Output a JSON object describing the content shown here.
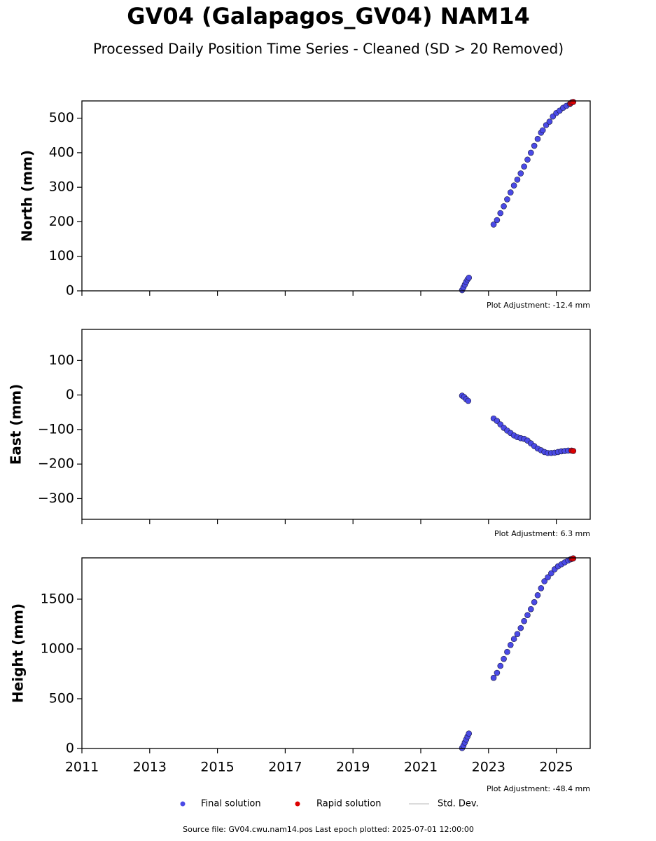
{
  "title": "GV04 (Galapagos_GV04) NAM14",
  "subtitle": "Processed Daily Position Time Series - Cleaned (SD > 20 Removed)",
  "std_dev_label": "Std. Dev.",
  "source": "Source file: GV04.cwu.nam14.pos  Last epoch plotted: 2025-07-01 12:00:00",
  "chart_data": [
    {
      "type": "scatter",
      "ylabel": "North (mm)",
      "annotation": "Plot Adjustment: -12.4 mm",
      "xlim": [
        2011,
        2026
      ],
      "xticks": [
        2011,
        2013,
        2015,
        2017,
        2019,
        2021,
        2023,
        2025
      ],
      "show_xtick_labels": false,
      "ylim": [
        0,
        550
      ],
      "yticks": [
        0,
        100,
        200,
        300,
        400,
        500
      ],
      "series": [
        {
          "name": "Final solution",
          "color": "#4a4ae6",
          "x": [
            2022.22,
            2022.26,
            2022.3,
            2022.34,
            2022.38,
            2022.42,
            2023.15,
            2023.25,
            2023.35,
            2023.45,
            2023.55,
            2023.65,
            2023.75,
            2023.85,
            2023.95,
            2024.05,
            2024.15,
            2024.25,
            2024.35,
            2024.45,
            2024.55,
            2024.6,
            2024.7,
            2024.8,
            2024.9,
            2025.0,
            2025.1,
            2025.2,
            2025.3,
            2025.4
          ],
          "values": [
            2,
            10,
            18,
            26,
            33,
            38,
            192,
            205,
            225,
            245,
            265,
            285,
            305,
            322,
            340,
            360,
            380,
            400,
            420,
            440,
            458,
            465,
            480,
            490,
            505,
            515,
            522,
            530,
            536,
            541
          ]
        },
        {
          "name": "Rapid solution",
          "color": "#dd0000",
          "x": [
            2025.42,
            2025.46,
            2025.5
          ],
          "values": [
            543,
            546,
            547
          ]
        }
      ]
    },
    {
      "type": "scatter",
      "ylabel": "East (mm)",
      "annotation": "Plot Adjustment: 6.3 mm",
      "xlim": [
        2011,
        2026
      ],
      "xticks": [
        2011,
        2013,
        2015,
        2017,
        2019,
        2021,
        2023,
        2025
      ],
      "show_xtick_labels": false,
      "ylim": [
        -360,
        190
      ],
      "yticks": [
        {
          "value": -300,
          "label": "−300"
        },
        {
          "value": -200,
          "label": "−200"
        },
        {
          "value": -100,
          "label": "−100"
        },
        0,
        100
      ],
      "series": [
        {
          "name": "Final solution",
          "color": "#4a4ae6",
          "x": [
            2022.22,
            2022.28,
            2022.34,
            2022.4,
            2023.15,
            2023.25,
            2023.35,
            2023.45,
            2023.55,
            2023.65,
            2023.75,
            2023.85,
            2023.95,
            2024.05,
            2024.15,
            2024.25,
            2024.35,
            2024.45,
            2024.55,
            2024.65,
            2024.75,
            2024.85,
            2024.95,
            2025.05,
            2025.15,
            2025.25,
            2025.35
          ],
          "values": [
            -2,
            -6,
            -12,
            -17,
            -68,
            -75,
            -85,
            -95,
            -103,
            -110,
            -117,
            -122,
            -125,
            -127,
            -132,
            -140,
            -148,
            -155,
            -160,
            -165,
            -168,
            -168,
            -167,
            -165,
            -163,
            -162,
            -161
          ]
        },
        {
          "name": "Rapid solution",
          "color": "#dd0000",
          "x": [
            2025.45,
            2025.5
          ],
          "values": [
            -161,
            -162
          ]
        }
      ]
    },
    {
      "type": "scatter",
      "ylabel": "Height (mm)",
      "annotation": "Plot Adjustment: -48.4 mm",
      "xlim": [
        2011,
        2026
      ],
      "xticks": [
        2011,
        2013,
        2015,
        2017,
        2019,
        2021,
        2023,
        2025
      ],
      "show_xtick_labels": true,
      "ylim": [
        0,
        1915
      ],
      "yticks": [
        0,
        500,
        1000,
        1500
      ],
      "series": [
        {
          "name": "Final solution",
          "color": "#4a4ae6",
          "x": [
            2022.22,
            2022.26,
            2022.3,
            2022.34,
            2022.38,
            2022.42,
            2023.15,
            2023.25,
            2023.35,
            2023.45,
            2023.55,
            2023.65,
            2023.75,
            2023.85,
            2023.95,
            2024.05,
            2024.15,
            2024.25,
            2024.35,
            2024.45,
            2024.55,
            2024.65,
            2024.75,
            2024.85,
            2024.95,
            2025.05,
            2025.15,
            2025.25,
            2025.35,
            2025.42
          ],
          "values": [
            5,
            30,
            60,
            90,
            120,
            150,
            710,
            760,
            830,
            900,
            970,
            1040,
            1100,
            1150,
            1210,
            1280,
            1340,
            1400,
            1470,
            1540,
            1610,
            1680,
            1720,
            1760,
            1800,
            1830,
            1850,
            1870,
            1890,
            1900
          ]
        },
        {
          "name": "Rapid solution",
          "color": "#dd0000",
          "x": [
            2025.46,
            2025.5
          ],
          "values": [
            1905,
            1910
          ]
        }
      ]
    }
  ]
}
